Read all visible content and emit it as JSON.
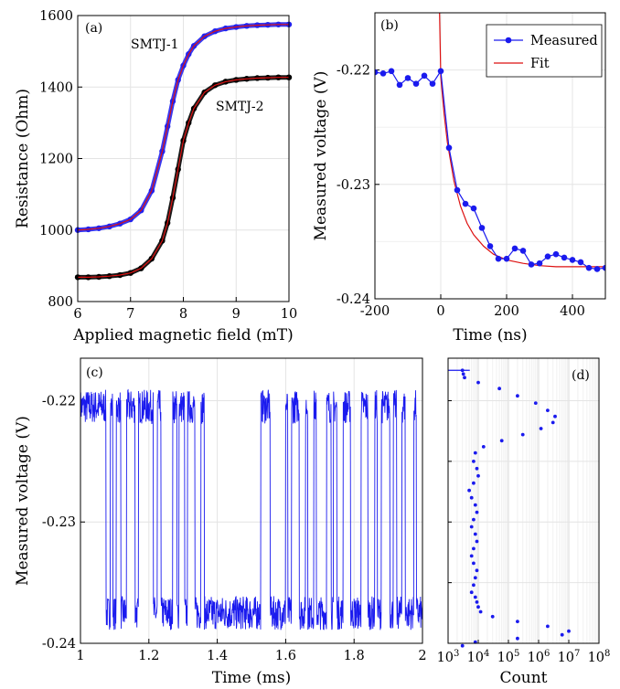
{
  "chart_data": [
    {
      "panel": "(a)",
      "type": "line",
      "xlabel": "Applied magnetic field (mT)",
      "ylabel": "Resistance (Ohm)",
      "xlim": [
        6,
        10
      ],
      "ylim": [
        800,
        1600
      ],
      "xticks": [
        "6",
        "7",
        "8",
        "9",
        "10"
      ],
      "yticks": [
        "800",
        "1000",
        "1200",
        "1400",
        "1600"
      ],
      "grid": true,
      "annotations": [
        "SMTJ-1",
        "SMTJ-2"
      ],
      "series": [
        {
          "name": "SMTJ-1",
          "marker_color": "#2222ee",
          "fit_color": "#dd1111",
          "x": [
            6.0,
            6.2,
            6.4,
            6.6,
            6.8,
            7.0,
            7.2,
            7.4,
            7.6,
            7.7,
            7.8,
            7.9,
            8.0,
            8.1,
            8.2,
            8.4,
            8.6,
            8.8,
            9.0,
            9.2,
            9.4,
            9.6,
            9.8,
            10.0
          ],
          "y": [
            1000,
            1002,
            1005,
            1010,
            1018,
            1030,
            1055,
            1110,
            1220,
            1290,
            1360,
            1420,
            1460,
            1492,
            1515,
            1542,
            1556,
            1564,
            1568,
            1571,
            1573,
            1574,
            1575,
            1575
          ]
        },
        {
          "name": "SMTJ-2",
          "marker_color": "#000000",
          "fit_color": "#dd1111",
          "x": [
            6.0,
            6.2,
            6.4,
            6.6,
            6.8,
            7.0,
            7.2,
            7.4,
            7.6,
            7.7,
            7.8,
            7.9,
            8.0,
            8.1,
            8.2,
            8.4,
            8.6,
            8.8,
            9.0,
            9.2,
            9.4,
            9.6,
            9.8,
            10.0
          ],
          "y": [
            868,
            868,
            869,
            871,
            874,
            880,
            893,
            920,
            970,
            1020,
            1090,
            1170,
            1250,
            1300,
            1340,
            1385,
            1405,
            1415,
            1420,
            1423,
            1425,
            1426,
            1427,
            1427
          ]
        }
      ]
    },
    {
      "panel": "(b)",
      "type": "line",
      "xlabel": "Time (ns)",
      "ylabel": "Measured voltage (V)",
      "xlim": [
        -200,
        500
      ],
      "ylim": [
        -0.24,
        -0.215
      ],
      "xticks": [
        "-200",
        "0",
        "200",
        "400"
      ],
      "yticks": [
        "-0.24",
        "-0.23",
        "-0.22"
      ],
      "grid": true,
      "legend": {
        "position": "top-right",
        "entries": [
          "Measured",
          "Fit"
        ]
      },
      "series": [
        {
          "name": "Measured",
          "color": "#1a1aee",
          "x": [
            -200,
            -175,
            -150,
            -125,
            -100,
            -75,
            -50,
            -25,
            0,
            25,
            50,
            75,
            100,
            125,
            150,
            175,
            200,
            225,
            250,
            275,
            300,
            325,
            350,
            375,
            400,
            425,
            450,
            475,
            500
          ],
          "y": [
            -0.2202,
            -0.2203,
            -0.2201,
            -0.2213,
            -0.2207,
            -0.2212,
            -0.2205,
            -0.2212,
            -0.2201,
            -0.2268,
            -0.2305,
            -0.2317,
            -0.2321,
            -0.2338,
            -0.2354,
            -0.2365,
            -0.2365,
            -0.2356,
            -0.2358,
            -0.237,
            -0.2369,
            -0.2363,
            -0.2361,
            -0.2364,
            -0.2366,
            -0.2368,
            -0.2373,
            -0.2374,
            -0.2373
          ]
        },
        {
          "name": "Fit",
          "color": "#dd1111",
          "x": [
            -10,
            -5,
            0,
            10,
            20,
            40,
            60,
            80,
            100,
            130,
            160,
            200,
            250,
            300,
            350,
            400,
            450,
            500
          ],
          "y": [
            -0.205,
            -0.213,
            -0.2206,
            -0.2238,
            -0.2263,
            -0.2297,
            -0.2319,
            -0.2334,
            -0.2344,
            -0.2354,
            -0.2361,
            -0.2366,
            -0.2369,
            -0.2371,
            -0.2372,
            -0.2372,
            -0.2372,
            -0.2372
          ]
        }
      ]
    },
    {
      "panel": "(c)",
      "type": "line",
      "xlabel": "Time (ms)",
      "ylabel": "Measured voltage (V)",
      "xlim": [
        1,
        2
      ],
      "ylim": [
        -0.24,
        -0.2165
      ],
      "xticks": [
        "1",
        "1.2",
        "1.4",
        "1.6",
        "1.8",
        "2"
      ],
      "yticks": [
        "-0.24",
        "-0.23",
        "-0.22"
      ],
      "grid": true,
      "levels": {
        "high": -0.2205,
        "low": -0.2375
      },
      "series": [
        {
          "name": "",
          "color": "#1a1aee",
          "high_state_intervals_ms": [
            [
              1.0,
              1.075
            ],
            [
              1.087,
              1.095
            ],
            [
              1.105,
              1.118
            ],
            [
              1.135,
              1.16
            ],
            [
              1.17,
              1.213
            ],
            [
              1.225,
              1.235
            ],
            [
              1.27,
              1.282
            ],
            [
              1.288,
              1.305
            ],
            [
              1.313,
              1.335
            ],
            [
              1.352,
              1.362
            ],
            [
              1.527,
              1.555
            ],
            [
              1.6,
              1.606
            ],
            [
              1.617,
              1.64
            ],
            [
              1.658,
              1.665
            ],
            [
              1.682,
              1.69
            ],
            [
              1.72,
              1.733
            ],
            [
              1.74,
              1.75
            ],
            [
              1.768,
              1.79
            ],
            [
              1.82,
              1.84
            ],
            [
              1.86,
              1.868
            ],
            [
              1.88,
              1.905
            ],
            [
              1.915,
              1.925
            ],
            [
              1.94,
              1.95
            ],
            [
              1.975,
              1.982
            ]
          ]
        }
      ]
    },
    {
      "panel": "(d)",
      "type": "scatter",
      "xlabel": "Count",
      "ylabel": "",
      "xscale": "log",
      "xlim": [
        1000,
        100000000
      ],
      "ylim": [
        -0.24,
        -0.2165
      ],
      "xticks": [
        "10^3",
        "10^4",
        "10^5",
        "10^6",
        "10^7",
        "10^8"
      ],
      "grid": true,
      "series": [
        {
          "name": "",
          "color": "#1a1aee",
          "x": [
            3000,
            3200,
            3500,
            10000,
            50000,
            200000,
            800000,
            2000000,
            3500000,
            3000000,
            1200000,
            300000,
            60000,
            15000,
            8000,
            7000,
            9000,
            10000,
            7000,
            5000,
            6000,
            8000,
            9000,
            7000,
            6000,
            8000,
            9000,
            7000,
            6000,
            7000,
            9000,
            8000,
            7000,
            6000,
            8000,
            9000,
            10000,
            12000,
            30000,
            200000,
            2000000,
            10000000,
            6000000,
            200000,
            8000,
            3000
          ],
          "y": [
            -0.2175,
            -0.2178,
            -0.2181,
            -0.2185,
            -0.219,
            -0.2196,
            -0.2202,
            -0.2208,
            -0.2213,
            -0.2218,
            -0.2223,
            -0.2228,
            -0.2233,
            -0.2238,
            -0.2243,
            -0.225,
            -0.2256,
            -0.2262,
            -0.2268,
            -0.2274,
            -0.228,
            -0.2286,
            -0.2292,
            -0.2298,
            -0.2304,
            -0.231,
            -0.2316,
            -0.2322,
            -0.2328,
            -0.2334,
            -0.234,
            -0.2346,
            -0.2352,
            -0.2358,
            -0.2362,
            -0.2366,
            -0.237,
            -0.2374,
            -0.2378,
            -0.2382,
            -0.2386,
            -0.239,
            -0.2393,
            -0.2396,
            -0.2399,
            -0.2402
          ]
        }
      ]
    }
  ]
}
